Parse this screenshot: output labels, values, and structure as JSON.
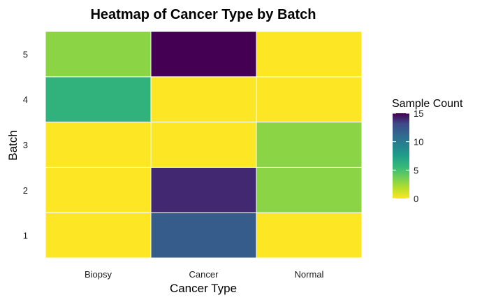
{
  "chart_data": {
    "type": "heatmap",
    "title": "Heatmap of Cancer Type by Batch",
    "xlabel": "Cancer Type",
    "ylabel": "Batch",
    "x_categories": [
      "Biopsy",
      "Cancer",
      "Normal"
    ],
    "y_categories": [
      "1",
      "2",
      "3",
      "4",
      "5"
    ],
    "cells": [
      {
        "x": "Biopsy",
        "y": "1",
        "value": 0
      },
      {
        "x": "Cancer",
        "y": "1",
        "value": 12
      },
      {
        "x": "Normal",
        "y": "1",
        "value": 0
      },
      {
        "x": "Biopsy",
        "y": "2",
        "value": 0
      },
      {
        "x": "Cancer",
        "y": "2",
        "value": 14
      },
      {
        "x": "Normal",
        "y": "2",
        "value": 3
      },
      {
        "x": "Biopsy",
        "y": "3",
        "value": 0
      },
      {
        "x": "Cancer",
        "y": "3",
        "value": 0
      },
      {
        "x": "Normal",
        "y": "3",
        "value": 3
      },
      {
        "x": "Biopsy",
        "y": "4",
        "value": 6
      },
      {
        "x": "Cancer",
        "y": "4",
        "value": 0
      },
      {
        "x": "Normal",
        "y": "4",
        "value": 0
      },
      {
        "x": "Biopsy",
        "y": "5",
        "value": 3
      },
      {
        "x": "Cancer",
        "y": "5",
        "value": 15
      },
      {
        "x": "Normal",
        "y": "5",
        "value": 0
      }
    ],
    "color_scale": {
      "name": "viridis",
      "direction": "reversed",
      "range": [
        0,
        15
      ],
      "low_color": "#FDE725",
      "high_color": "#440154"
    },
    "legend": {
      "title": "Sample Count",
      "ticks": [
        0,
        5,
        10,
        15
      ],
      "placement": "right"
    },
    "grid": false
  }
}
